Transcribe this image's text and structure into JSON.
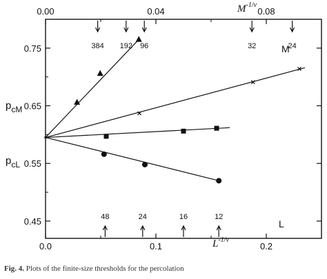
{
  "chart_data": {
    "type": "scatter",
    "bottom_axis": {
      "label_main": "L",
      "label_exp": "-1/ν",
      "range": [
        0.0,
        0.25
      ],
      "ticks": [
        0.0,
        0.1,
        0.2
      ],
      "tick_labels": [
        "0.0",
        "0.1",
        "0.2"
      ]
    },
    "top_axis": {
      "label_main": "M",
      "label_exp": "-1/ν",
      "range": [
        0.0,
        0.1
      ],
      "ticks": [
        0.0,
        0.04,
        0.08
      ],
      "tick_labels": [
        "0.00",
        "0.04",
        "0.08"
      ]
    },
    "y_axis": {
      "range": [
        0.42,
        0.8
      ],
      "ticks": [
        0.45,
        0.55,
        0.65,
        0.75
      ],
      "tick_labels": [
        "0.45",
        "0.55",
        "0.65",
        "0.75"
      ],
      "label_upper": {
        "main": "p",
        "sub": "cM"
      },
      "label_lower": {
        "main": "p",
        "sub": "cL"
      }
    },
    "M_annotations": {
      "title": "M",
      "marks": [
        {
          "label": "384",
          "x_top": 0.0189
        },
        {
          "label": "192",
          "x_top": 0.0292
        },
        {
          "label": "96",
          "x_top": 0.0358
        },
        {
          "label": "32",
          "x_top": 0.0748
        },
        {
          "label": "24",
          "x_top": 0.0894
        }
      ]
    },
    "L_annotations": {
      "title": "L",
      "marks": [
        {
          "label": "48",
          "x": 0.054
        },
        {
          "label": "24",
          "x": 0.088
        },
        {
          "label": "16",
          "x": 0.125
        },
        {
          "label": "12",
          "x": 0.157
        }
      ]
    },
    "series": [
      {
        "marker": "triangle",
        "axis": "top",
        "points": [
          [
            0.0,
            0.595
          ],
          [
            0.0114,
            0.656
          ],
          [
            0.0198,
            0.706
          ],
          [
            0.0338,
            0.765
          ]
        ]
      },
      {
        "marker": "x",
        "axis": "bottom",
        "points": [
          [
            0.0,
            0.595
          ],
          [
            0.085,
            0.637
          ],
          [
            0.188,
            0.691
          ],
          [
            0.23,
            0.714
          ]
        ]
      },
      {
        "marker": "square",
        "axis": "bottom",
        "points": [
          [
            0.0,
            0.595
          ],
          [
            0.055,
            0.597
          ],
          [
            0.125,
            0.606
          ],
          [
            0.155,
            0.611
          ]
        ]
      },
      {
        "marker": "circle",
        "axis": "bottom",
        "points": [
          [
            0.0,
            0.595
          ],
          [
            0.053,
            0.566
          ],
          [
            0.09,
            0.548
          ],
          [
            0.157,
            0.52
          ]
        ]
      }
    ],
    "fits": [
      {
        "marker": "triangle",
        "axis": "top",
        "from": [
          0.0,
          0.595
        ],
        "to": [
          0.0338,
          0.765
        ]
      },
      {
        "marker": "x",
        "axis": "bottom",
        "from": [
          0.0,
          0.595
        ],
        "to": [
          0.235,
          0.716
        ]
      },
      {
        "marker": "square",
        "axis": "bottom",
        "from": [
          0.0,
          0.595
        ],
        "to": [
          0.167,
          0.612
        ]
      },
      {
        "marker": "circle",
        "axis": "bottom",
        "from": [
          0.0,
          0.595
        ],
        "to": [
          0.157,
          0.52
        ]
      }
    ]
  },
  "caption": {
    "label": "Fig. 4.",
    "text": "Plots of the finite-size thresholds for the percolation"
  }
}
